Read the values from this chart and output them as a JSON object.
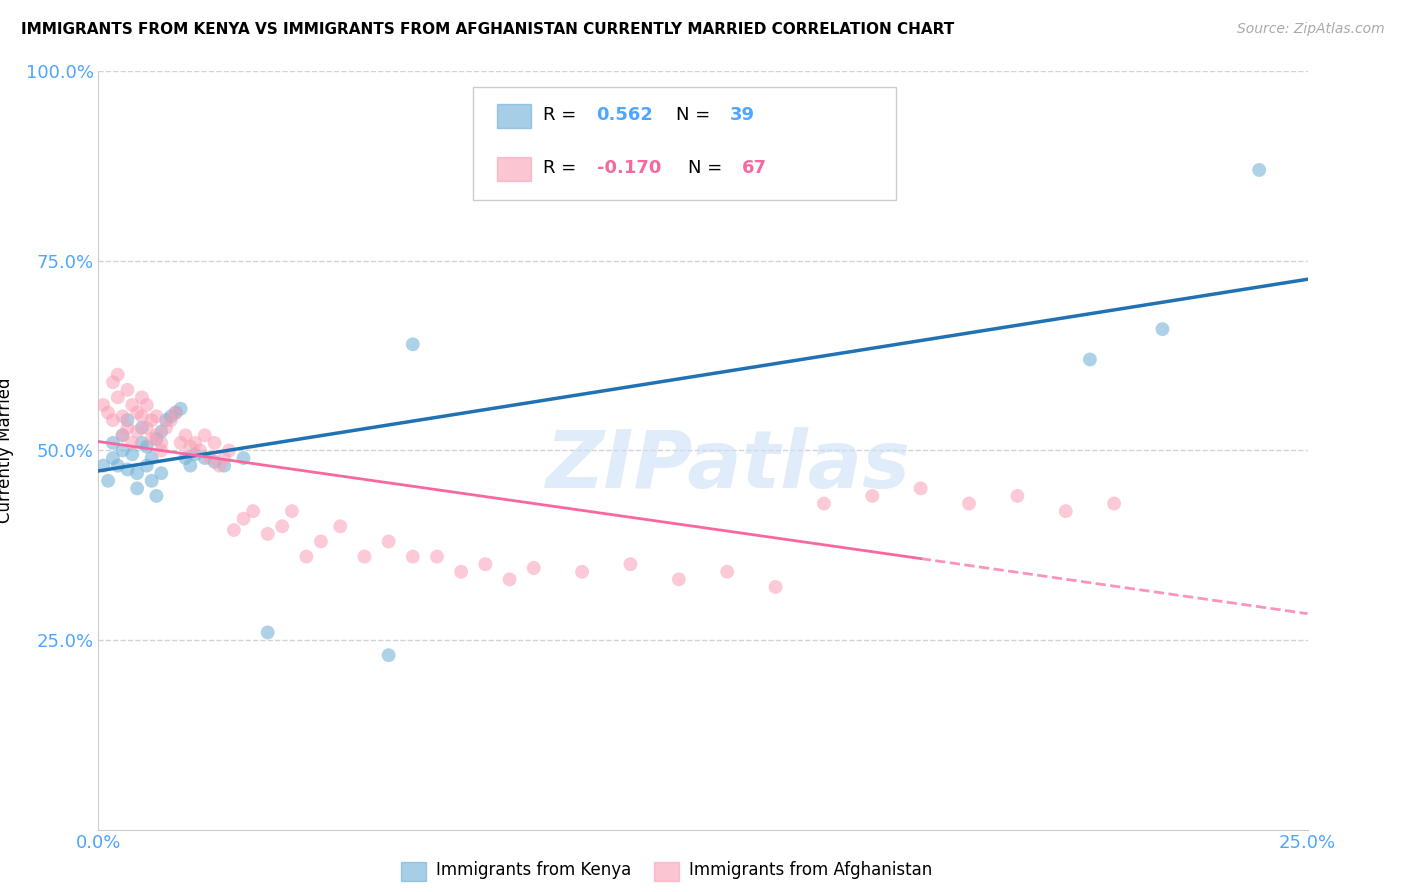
{
  "title": "IMMIGRANTS FROM KENYA VS IMMIGRANTS FROM AFGHANISTAN CURRENTLY MARRIED CORRELATION CHART",
  "source": "Source: ZipAtlas.com",
  "ylabel_label": "Currently Married",
  "x_label_bottom": "Immigrants from Kenya",
  "x_label_bottom2": "Immigrants from Afghanistan",
  "x_min": 0.0,
  "x_max": 0.25,
  "y_min": 0.0,
  "y_max": 1.0,
  "kenya_R": "0.562",
  "kenya_N": "39",
  "afghanistan_R": "-0.170",
  "afghanistan_N": "67",
  "kenya_color": "#6baed6",
  "afghanistan_color": "#fa9fb5",
  "kenya_line_color": "#2171b5",
  "afghanistan_line_color": "#f768a1",
  "tick_label_color": "#4da6ff",
  "grid_color": "#d3d3d3",
  "watermark": "ZIPatlas",
  "kenya_points_x": [
    0.001,
    0.002,
    0.003,
    0.003,
    0.004,
    0.005,
    0.005,
    0.006,
    0.006,
    0.007,
    0.008,
    0.008,
    0.009,
    0.009,
    0.01,
    0.01,
    0.011,
    0.011,
    0.012,
    0.012,
    0.013,
    0.013,
    0.014,
    0.015,
    0.016,
    0.017,
    0.018,
    0.019,
    0.02,
    0.022,
    0.024,
    0.026,
    0.03,
    0.035,
    0.06,
    0.065,
    0.205,
    0.22,
    0.24
  ],
  "kenya_points_y": [
    0.48,
    0.46,
    0.49,
    0.51,
    0.48,
    0.5,
    0.52,
    0.54,
    0.475,
    0.495,
    0.45,
    0.47,
    0.51,
    0.53,
    0.48,
    0.505,
    0.46,
    0.49,
    0.44,
    0.515,
    0.47,
    0.525,
    0.54,
    0.545,
    0.55,
    0.555,
    0.49,
    0.48,
    0.495,
    0.49,
    0.485,
    0.48,
    0.49,
    0.26,
    0.23,
    0.64,
    0.62,
    0.66,
    0.87
  ],
  "afghanistan_points_x": [
    0.001,
    0.002,
    0.003,
    0.003,
    0.004,
    0.004,
    0.005,
    0.005,
    0.006,
    0.006,
    0.007,
    0.007,
    0.008,
    0.008,
    0.009,
    0.009,
    0.01,
    0.01,
    0.011,
    0.011,
    0.012,
    0.012,
    0.013,
    0.013,
    0.014,
    0.015,
    0.016,
    0.017,
    0.018,
    0.019,
    0.02,
    0.021,
    0.022,
    0.023,
    0.024,
    0.025,
    0.026,
    0.027,
    0.028,
    0.03,
    0.032,
    0.035,
    0.038,
    0.04,
    0.043,
    0.046,
    0.05,
    0.055,
    0.06,
    0.065,
    0.07,
    0.075,
    0.08,
    0.085,
    0.09,
    0.1,
    0.11,
    0.12,
    0.13,
    0.14,
    0.15,
    0.16,
    0.17,
    0.18,
    0.19,
    0.2,
    0.21
  ],
  "afghanistan_points_y": [
    0.56,
    0.55,
    0.59,
    0.54,
    0.6,
    0.57,
    0.545,
    0.52,
    0.58,
    0.53,
    0.56,
    0.51,
    0.55,
    0.525,
    0.545,
    0.57,
    0.53,
    0.56,
    0.515,
    0.54,
    0.52,
    0.545,
    0.51,
    0.5,
    0.53,
    0.54,
    0.55,
    0.51,
    0.52,
    0.505,
    0.51,
    0.5,
    0.52,
    0.49,
    0.51,
    0.48,
    0.49,
    0.5,
    0.395,
    0.41,
    0.42,
    0.39,
    0.4,
    0.42,
    0.36,
    0.38,
    0.4,
    0.36,
    0.38,
    0.36,
    0.36,
    0.34,
    0.35,
    0.33,
    0.345,
    0.34,
    0.35,
    0.33,
    0.34,
    0.32,
    0.43,
    0.44,
    0.45,
    0.43,
    0.44,
    0.42,
    0.43
  ]
}
